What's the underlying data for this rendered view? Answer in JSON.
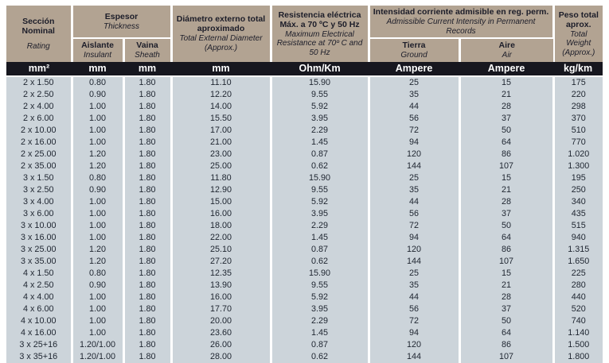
{
  "colors": {
    "header_bg": "#b2a392",
    "units_bg": "#17171f",
    "body_bg": "#ccd4da",
    "separator": "#ffffff",
    "header_text": "#1c1d29",
    "body_text": "#1e2530",
    "units_text": "#ffffff"
  },
  "header": {
    "section": {
      "title": "Sección Nominal",
      "subtitle": "Rating"
    },
    "thickness": {
      "title": "Espesor",
      "subtitle": "Thickness",
      "insulant": {
        "title": "Aislante",
        "subtitle": "Insulant"
      },
      "sheath": {
        "title": "Vaina",
        "subtitle": "Sheath"
      }
    },
    "diameter": {
      "title": "Diámetro externo total aproximado",
      "subtitle": "Total External Diameter (Approx.)"
    },
    "resistance": {
      "title": "Resistencia eléctrica Máx. a 70 ºC y 50 Hz",
      "subtitle": "Maximum Electrical Resistance at 70º C and 50 Hz"
    },
    "current": {
      "title": "Intensidad corriente admisible en reg. perm.",
      "subtitle": "Admissible Current Intensity in Permanent Records",
      "ground": {
        "title": "Tierra",
        "subtitle": "Ground"
      },
      "air": {
        "title": "Aire",
        "subtitle": "Air"
      }
    },
    "weight": {
      "title": "Peso total aprox.",
      "subtitle": "Total Weight (Approx.)"
    }
  },
  "units": [
    "mm²",
    "mm",
    "mm",
    "mm",
    "Ohm/Km",
    "Ampere",
    "Ampere",
    "kg/km"
  ],
  "rows": [
    [
      "2 x 1.50",
      "0.80",
      "1.80",
      "11.10",
      "15.90",
      "25",
      "15",
      "175"
    ],
    [
      "2 x 2.50",
      "0.90",
      "1.80",
      "12.20",
      "9.55",
      "35",
      "21",
      "220"
    ],
    [
      "2 x 4.00",
      "1.00",
      "1.80",
      "14.00",
      "5.92",
      "44",
      "28",
      "298"
    ],
    [
      "2 x 6.00",
      "1.00",
      "1.80",
      "15.50",
      "3.95",
      "56",
      "37",
      "370"
    ],
    [
      "2 x 10.00",
      "1.00",
      "1.80",
      "17.00",
      "2.29",
      "72",
      "50",
      "510"
    ],
    [
      "2 x 16.00",
      "1.00",
      "1.80",
      "21.00",
      "1.45",
      "94",
      "64",
      "770"
    ],
    [
      "2 x 25.00",
      "1.20",
      "1.80",
      "23.00",
      "0.87",
      "120",
      "86",
      "1.020"
    ],
    [
      "2 x 35.00",
      "1.20",
      "1.80",
      "25.00",
      "0.62",
      "144",
      "107",
      "1.300"
    ],
    [
      "3 x 1.50",
      "0.80",
      "1.80",
      "11.80",
      "15.90",
      "25",
      "15",
      "195"
    ],
    [
      "3 x 2.50",
      "0.90",
      "1.80",
      "12.90",
      "9.55",
      "35",
      "21",
      "250"
    ],
    [
      "3 x 4.00",
      "1.00",
      "1.80",
      "15.00",
      "5.92",
      "44",
      "28",
      "340"
    ],
    [
      "3 x 6.00",
      "1.00",
      "1.80",
      "16.00",
      "3.95",
      "56",
      "37",
      "435"
    ],
    [
      "3 x 10.00",
      "1.00",
      "1.80",
      "18.00",
      "2.29",
      "72",
      "50",
      "515"
    ],
    [
      "3 x 16.00",
      "1.00",
      "1.80",
      "22.00",
      "1.45",
      "94",
      "64",
      "940"
    ],
    [
      "3 x 25.00",
      "1.20",
      "1.80",
      "25.10",
      "0.87",
      "120",
      "86",
      "1.315"
    ],
    [
      "3 x 35.00",
      "1.20",
      "1.80",
      "27.20",
      "0.62",
      "144",
      "107",
      "1.650"
    ],
    [
      "4 x 1.50",
      "0.80",
      "1.80",
      "12.35",
      "15.90",
      "25",
      "15",
      "225"
    ],
    [
      "4 x 2.50",
      "0.90",
      "1.80",
      "13.90",
      "9.55",
      "35",
      "21",
      "280"
    ],
    [
      "4 x 4.00",
      "1.00",
      "1.80",
      "16.00",
      "5.92",
      "44",
      "28",
      "440"
    ],
    [
      "4 x 6.00",
      "1.00",
      "1.80",
      "17.70",
      "3.95",
      "56",
      "37",
      "520"
    ],
    [
      "4 x 10.00",
      "1.00",
      "1.80",
      "20.00",
      "2.29",
      "72",
      "50",
      "740"
    ],
    [
      "4 x 16.00",
      "1.00",
      "1.80",
      "23.60",
      "1.45",
      "94",
      "64",
      "1.140"
    ],
    [
      "3 x 25+16",
      "1.20/1.00",
      "1.80",
      "26.00",
      "0.87",
      "120",
      "86",
      "1.500"
    ],
    [
      "3 x 35+16",
      "1.20/1.00",
      "1.80",
      "28.00",
      "0.62",
      "144",
      "107",
      "1.800"
    ]
  ]
}
